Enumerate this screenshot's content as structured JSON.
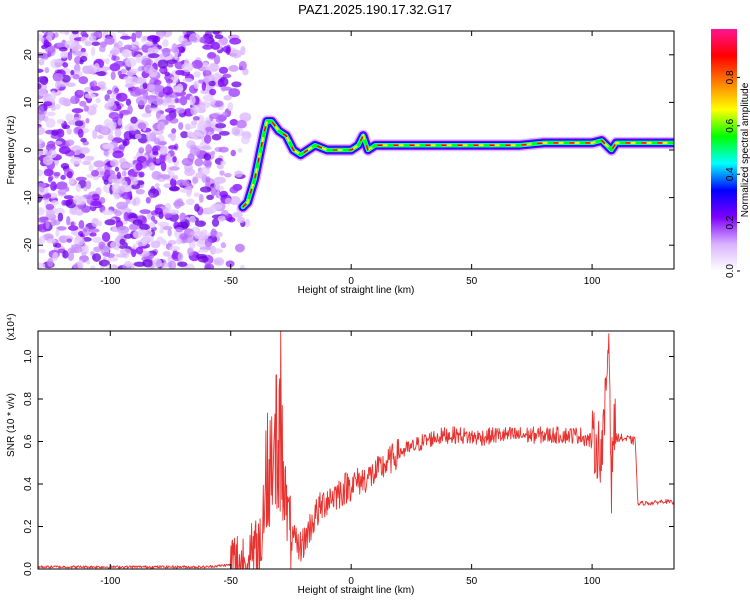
{
  "title": "PAZ1.2025.190.17.32.G17",
  "chart_data": [
    {
      "type": "heatmap",
      "name": "spectrogram",
      "xlabel": "Height of straight line (km)",
      "ylabel": "Frequency (Hz)",
      "xlim": [
        -130,
        134
      ],
      "ylim": [
        -25,
        25
      ],
      "xticks": [
        -100,
        -50,
        0,
        50,
        100
      ],
      "yticks": [
        -20,
        -10,
        0,
        10,
        20
      ],
      "colorbar": {
        "label": "Normalized spectral amplitude",
        "range": [
          0,
          1
        ],
        "ticks": [
          "0.0",
          "0.2",
          "0.4",
          "0.6",
          "0.8"
        ],
        "tick_values": [
          0,
          0.2,
          0.4,
          0.6,
          0.8
        ],
        "colors": [
          "#ffffff",
          "#d9b3ff",
          "#7f00ff",
          "#0000ff",
          "#00ffff",
          "#00ff00",
          "#ffff00",
          "#ff8000",
          "#ff0000",
          "#ff1493"
        ]
      },
      "noise_region": {
        "x_range": [
          -130,
          -43
        ],
        "freq_range": [
          -25,
          25
        ]
      },
      "ridge": {
        "x": [
          -45,
          -43,
          -40,
          -38,
          -36,
          -35,
          -33,
          -30,
          -27,
          -24,
          -21,
          -18,
          -15,
          -10,
          -5,
          0,
          3,
          5,
          7,
          10,
          15,
          20,
          25,
          30,
          35,
          40,
          50,
          60,
          70,
          80,
          90,
          100,
          104,
          106,
          108,
          110,
          120,
          134
        ],
        "freq": [
          -12,
          -11,
          -6,
          -1,
          4,
          6,
          6,
          4,
          3,
          0,
          -1,
          0,
          1,
          0,
          0,
          0,
          1,
          3,
          0,
          1,
          1,
          1,
          1,
          1,
          1,
          1,
          1,
          1,
          1,
          1.5,
          1.5,
          1.5,
          2,
          1,
          0,
          1.5,
          1.5,
          1.5
        ]
      }
    },
    {
      "type": "line",
      "name": "snr",
      "xlabel": "Height of straight line (km)",
      "ylabel": "SNR (10 * v/v)",
      "y_multiplier": "(x10⁴)",
      "xlim": [
        -130,
        134
      ],
      "ylim": [
        0,
        1.12
      ],
      "xticks": [
        -100,
        -50,
        0,
        50,
        100
      ],
      "yticks": [
        0.0,
        0.2,
        0.4,
        0.6,
        0.8,
        1.0
      ],
      "color": "#e8322f",
      "series": [
        {
          "x": [
            -130,
            -100,
            -60,
            -50,
            -45,
            -40,
            -38,
            -36,
            -34,
            -32,
            -31,
            -30,
            -29,
            -28,
            -27,
            -25,
            -22,
            -20,
            -15,
            -10,
            -5,
            0,
            5,
            10,
            15,
            20,
            25,
            30,
            35,
            40,
            45,
            50,
            55,
            60,
            65,
            70,
            75,
            80,
            85,
            90,
            95,
            100,
            104,
            105,
            106,
            107,
            108,
            109,
            110,
            115,
            118,
            119,
            120,
            125,
            130,
            134
          ],
          "y": [
            0.01,
            0.01,
            0.01,
            0.02,
            0.02,
            0.05,
            0.1,
            0.3,
            0.5,
            0.55,
            0.6,
            0.4,
            0.7,
            0.45,
            0.3,
            0.15,
            0.1,
            0.12,
            0.25,
            0.33,
            0.36,
            0.4,
            0.42,
            0.45,
            0.5,
            0.55,
            0.57,
            0.6,
            0.62,
            0.63,
            0.63,
            0.62,
            0.62,
            0.63,
            0.63,
            0.63,
            0.63,
            0.63,
            0.63,
            0.63,
            0.63,
            0.6,
            0.55,
            0.65,
            0.9,
            1.12,
            0.4,
            0.7,
            0.62,
            0.61,
            0.6,
            0.3,
            0.31,
            0.31,
            0.32,
            0.31
          ]
        }
      ]
    }
  ]
}
